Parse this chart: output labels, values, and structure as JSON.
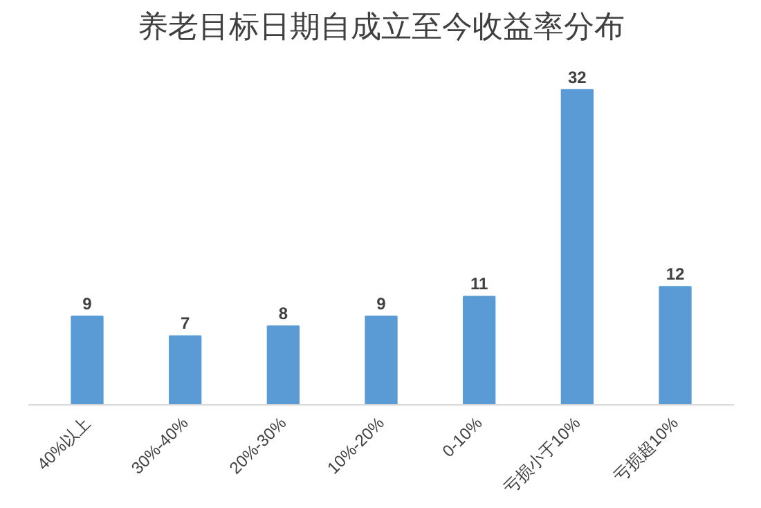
{
  "chart_data": {
    "type": "bar",
    "title": "养老目标日期自成立至今收益率分布",
    "categories": [
      "40%以上",
      "30%-40%",
      "20%-30%",
      "10%-20%",
      "0-10%",
      "亏损小于10%",
      "亏损超10%"
    ],
    "values": [
      9,
      7,
      8,
      9,
      11,
      32,
      12
    ],
    "color": "#5b9bd5",
    "data_labels": true
  }
}
